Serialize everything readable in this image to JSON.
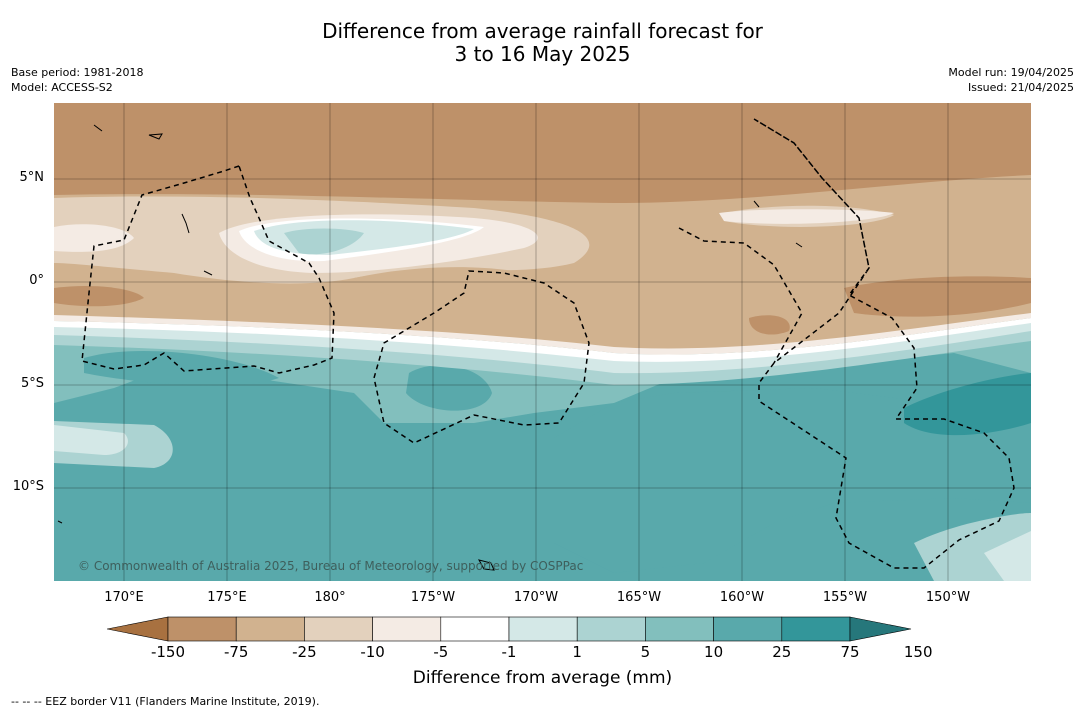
{
  "title": {
    "line1": "Difference from average rainfall forecast for",
    "line2": "3 to 16 May 2025"
  },
  "meta": {
    "base_period": "Base period: 1981-2018",
    "model": "Model: ACCESS-S2",
    "model_run": "Model run: 19/04/2025",
    "issued": "Issued: 21/04/2025"
  },
  "map": {
    "longitudes": [
      "170°E",
      "175°E",
      "180°",
      "175°W",
      "170°W",
      "165°W",
      "160°W",
      "155°W",
      "150°W"
    ],
    "latitudes": [
      "5°N",
      "0°",
      "5°S",
      "10°S"
    ],
    "copyright": "© Commonwealth of Australia 2025, Bureau of Meteorology, supported by COSPPac"
  },
  "colorbar": {
    "labels": [
      "-150",
      "-75",
      "-25",
      "-10",
      "-5",
      "-1",
      "1",
      "5",
      "10",
      "25",
      "75",
      "150"
    ],
    "colors": [
      "#a87140",
      "#be9169",
      "#d1b28f",
      "#e3d1bd",
      "#f4ebe4",
      "#ffffff",
      "#d4e8e7",
      "#acd3d2",
      "#82bfbd",
      "#59a9ab",
      "#33969a",
      "#26777b"
    ],
    "title": "Difference from average (mm)"
  },
  "legend": {
    "eez": "-- -- -- EEZ border V11 (Flanders Marine Institute, 2019)."
  }
}
